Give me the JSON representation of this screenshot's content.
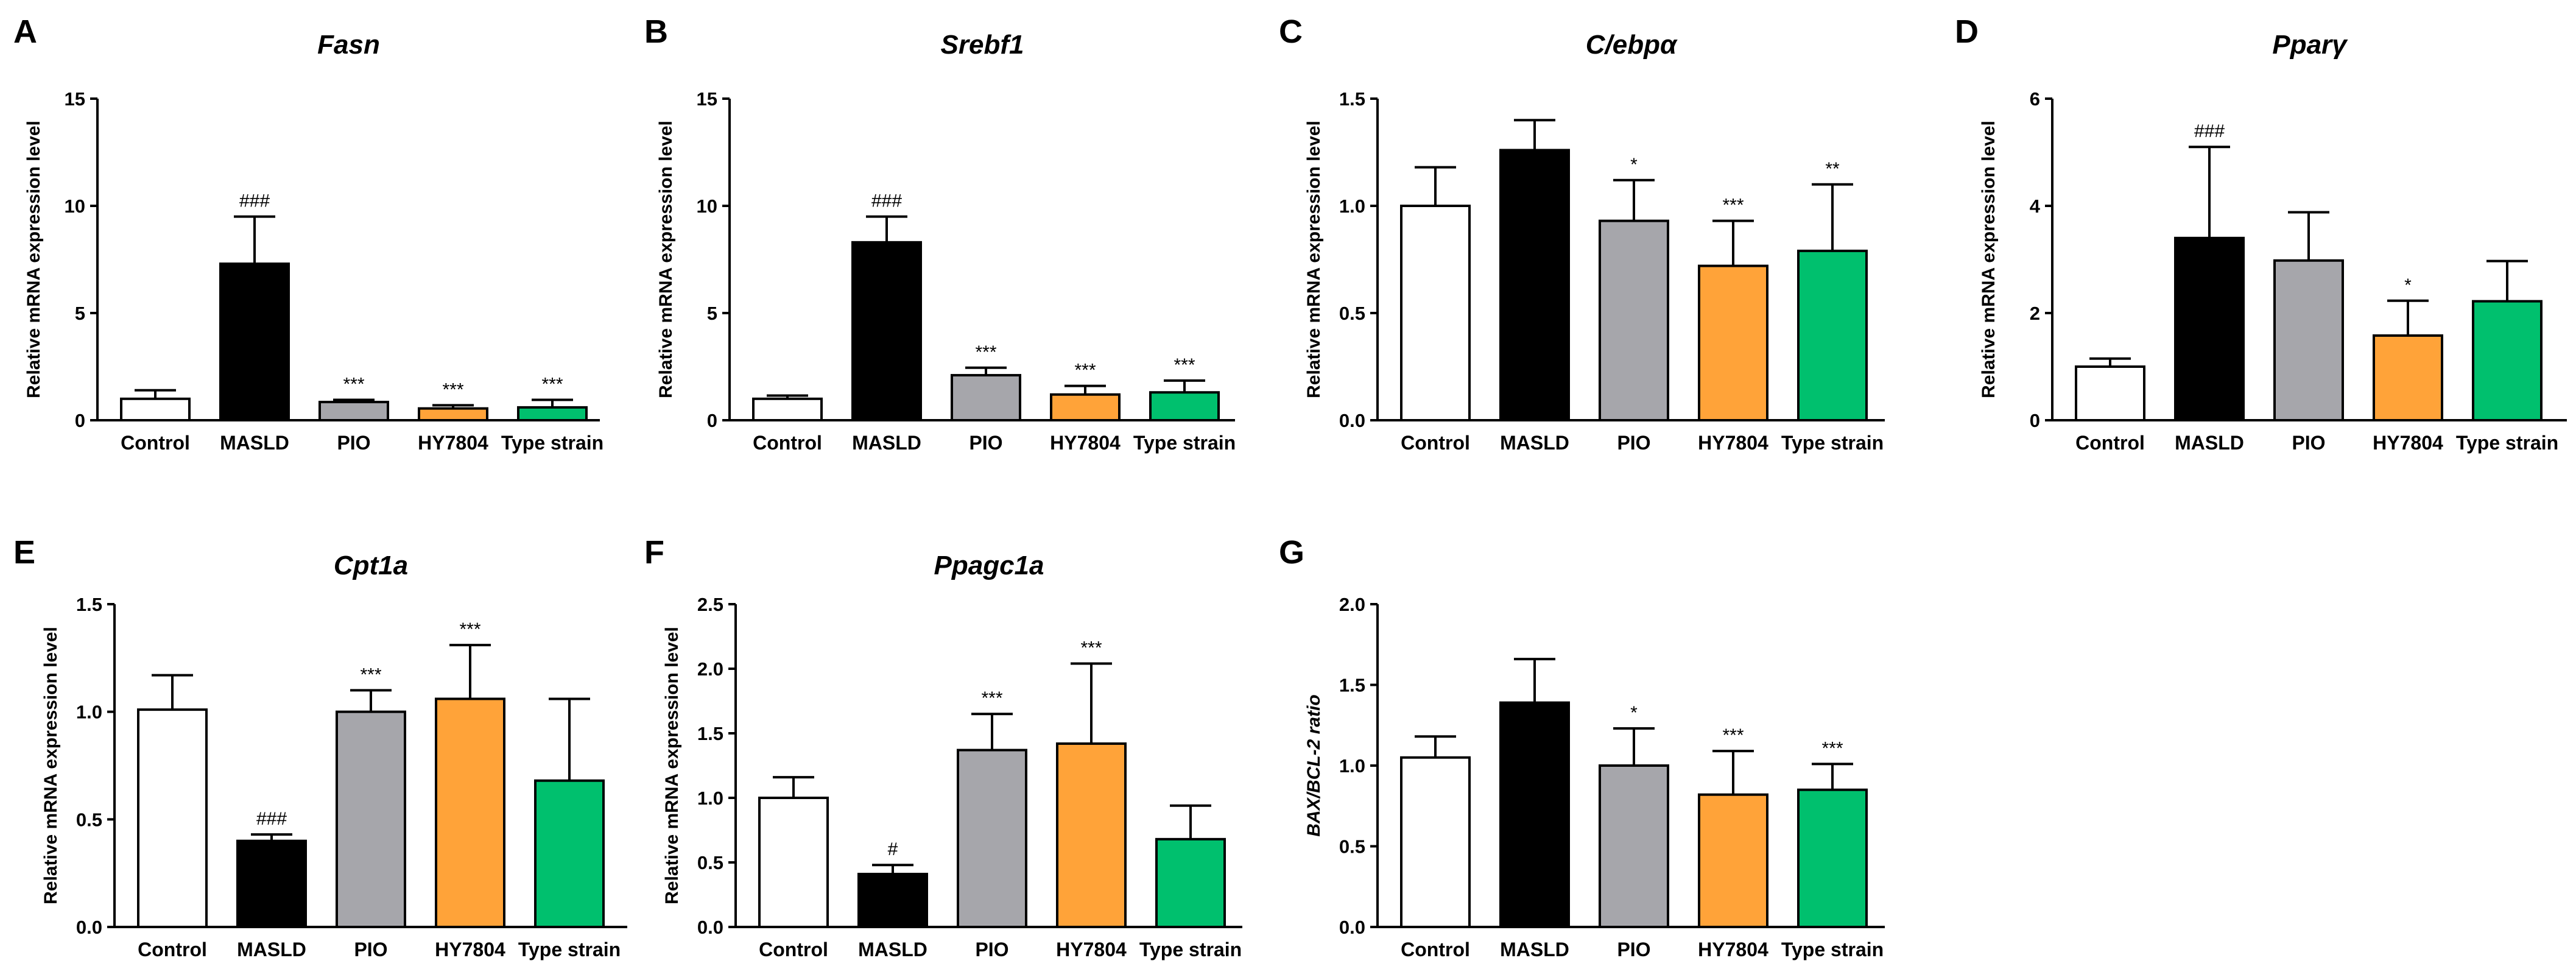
{
  "colors": {
    "Control": "#ffffff",
    "MASLD": "#000000",
    "PIO": "#a6a6ab",
    "HY7804": "#ffa339",
    "Type strain": "#00c06e"
  },
  "chart_data": [
    {
      "panel": "A",
      "type": "bar",
      "title": "Fasn",
      "ylabel": "Relative mRNA expression level",
      "xlabel": "",
      "ylim": [
        0,
        15
      ],
      "yticks": [
        0,
        5,
        10,
        15
      ],
      "ytick_labels": [
        "0",
        "5",
        "10",
        "15"
      ],
      "categories": [
        "Control",
        "MASLD",
        "PIO",
        "HY7804",
        "Type strain"
      ],
      "values": [
        1.0,
        7.3,
        0.85,
        0.55,
        0.6
      ],
      "errors": [
        0.4,
        2.2,
        0.1,
        0.15,
        0.35
      ],
      "annotations": [
        "",
        "###",
        "***",
        "***",
        "***"
      ]
    },
    {
      "panel": "B",
      "type": "bar",
      "title": "Srebf1",
      "ylabel": "Relative mRNA expression level",
      "xlabel": "",
      "ylim": [
        0,
        15
      ],
      "yticks": [
        0,
        5,
        10,
        15
      ],
      "ytick_labels": [
        "0",
        "5",
        "10",
        "15"
      ],
      "categories": [
        "Control",
        "MASLD",
        "PIO",
        "HY7804",
        "Type strain"
      ],
      "values": [
        1.0,
        8.3,
        2.1,
        1.2,
        1.3
      ],
      "errors": [
        0.15,
        1.2,
        0.35,
        0.4,
        0.55
      ],
      "annotations": [
        "",
        "###",
        "***",
        "***",
        "***"
      ]
    },
    {
      "panel": "C",
      "type": "bar",
      "title": "C/ebpα",
      "ylabel": "Relative mRNA expression level",
      "xlabel": "",
      "ylim": [
        0,
        1.5
      ],
      "yticks": [
        0,
        0.5,
        1.0,
        1.5
      ],
      "ytick_labels": [
        "0.0",
        "0.5",
        "1.0",
        "1.5"
      ],
      "categories": [
        "Control",
        "MASLD",
        "PIO",
        "HY7804",
        "Type strain"
      ],
      "values": [
        1.0,
        1.26,
        0.93,
        0.72,
        0.79
      ],
      "errors": [
        0.18,
        0.14,
        0.19,
        0.21,
        0.31
      ],
      "annotations": [
        "",
        "",
        "*",
        "***",
        "**"
      ]
    },
    {
      "panel": "D",
      "type": "bar",
      "title": "Pparγ",
      "ylabel": "Relative mRNA expression level",
      "xlabel": "",
      "ylim": [
        0,
        6
      ],
      "yticks": [
        0,
        2,
        4,
        6
      ],
      "ytick_labels": [
        "0",
        "2",
        "4",
        "6"
      ],
      "categories": [
        "Control",
        "MASLD",
        "PIO",
        "HY7804",
        "Type strain"
      ],
      "values": [
        1.0,
        3.4,
        2.98,
        1.58,
        2.22
      ],
      "errors": [
        0.15,
        1.7,
        0.9,
        0.65,
        0.75
      ],
      "annotations": [
        "",
        "###",
        "",
        "*",
        ""
      ]
    },
    {
      "panel": "E",
      "type": "bar",
      "title": "Cpt1a",
      "ylabel": "Relative mRNA expression level",
      "xlabel": "",
      "ylim": [
        0,
        1.5
      ],
      "yticks": [
        0,
        0.5,
        1.0,
        1.5
      ],
      "ytick_labels": [
        "0.0",
        "0.5",
        "1.0",
        "1.5"
      ],
      "categories": [
        "Control",
        "MASLD",
        "PIO",
        "HY7804",
        "Type strain"
      ],
      "values": [
        1.01,
        0.4,
        1.0,
        1.06,
        0.68
      ],
      "errors": [
        0.16,
        0.03,
        0.1,
        0.25,
        0.38
      ],
      "annotations": [
        "",
        "###",
        "***",
        "***",
        ""
      ]
    },
    {
      "panel": "F",
      "type": "bar",
      "title": "Ppagc1a",
      "ylabel": "Relative mRNA expression level",
      "xlabel": "",
      "ylim": [
        0,
        2.5
      ],
      "yticks": [
        0,
        0.5,
        1.0,
        1.5,
        2.0,
        2.5
      ],
      "ytick_labels": [
        "0.0",
        "0.5",
        "1.0",
        "1.5",
        "2.0",
        "2.5"
      ],
      "categories": [
        "Control",
        "MASLD",
        "PIO",
        "HY7804",
        "Type strain"
      ],
      "values": [
        1.0,
        0.41,
        1.37,
        1.42,
        0.68
      ],
      "errors": [
        0.16,
        0.07,
        0.28,
        0.62,
        0.26
      ],
      "annotations": [
        "",
        "#",
        "***",
        "***",
        ""
      ]
    },
    {
      "panel": "G",
      "type": "bar",
      "title": "",
      "ylabel": "BAX/BCL-2 ratio",
      "xlabel": "",
      "ylim": [
        0,
        2.0
      ],
      "yticks": [
        0,
        0.5,
        1.0,
        1.5,
        2.0
      ],
      "ytick_labels": [
        "0.0",
        "0.5",
        "1.0",
        "1.5",
        "2.0"
      ],
      "categories": [
        "Control",
        "MASLD",
        "PIO",
        "HY7804",
        "Type strain"
      ],
      "values": [
        1.05,
        1.39,
        1.0,
        0.82,
        0.85
      ],
      "errors": [
        0.13,
        0.27,
        0.23,
        0.27,
        0.16
      ],
      "annotations": [
        "",
        "",
        "*",
        "***",
        "***"
      ]
    }
  ]
}
